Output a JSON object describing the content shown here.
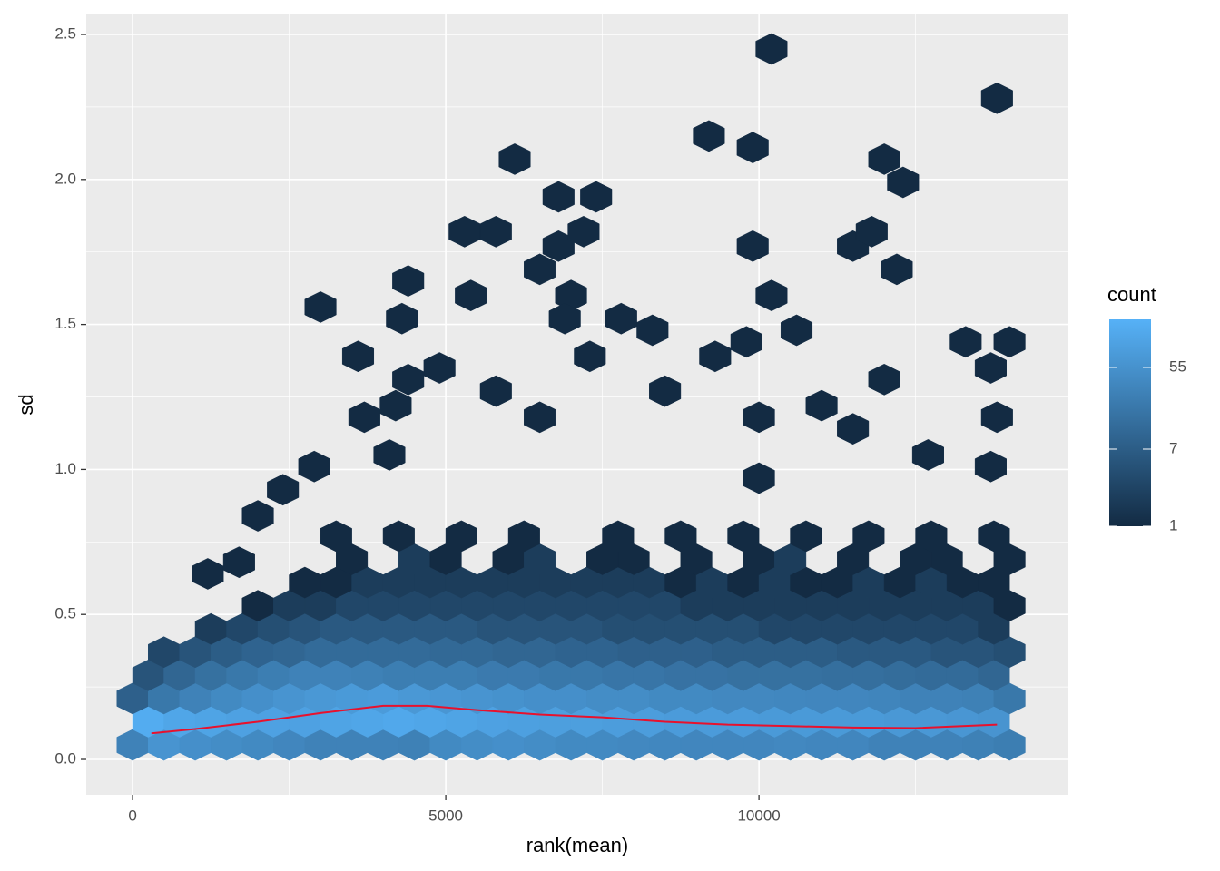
{
  "chart_data": {
    "type": "hexbin",
    "x_label": "rank(mean)",
    "y_label": "sd",
    "xlim": [
      -740,
      14940
    ],
    "ylim": [
      -0.122,
      2.572
    ],
    "xticks": [
      0,
      5000,
      10000
    ],
    "yticks": [
      {
        "value": 0,
        "label": "0.0"
      },
      0.5,
      {
        "value": 1,
        "label": "1.0"
      },
      1.5,
      {
        "value": 2,
        "label": "2.0"
      },
      2.5
    ],
    "x_minor_grid": [
      2500,
      7500,
      12500
    ],
    "y_minor_grid": [
      0.25,
      0.75,
      1.25,
      1.75,
      2.25
    ],
    "grid": true,
    "color_low": "#132B43",
    "color_high": "#56B1F7",
    "legend": {
      "title": "count",
      "ticks": [
        1,
        7,
        55
      ],
      "lim": [
        1,
        185
      ],
      "position": "right"
    },
    "hexes": [
      [
        0,
        0.05,
        30
      ],
      [
        500,
        0.05,
        60
      ],
      [
        1000,
        0.05,
        50
      ],
      [
        1500,
        0.05,
        45
      ],
      [
        2000,
        0.05,
        40
      ],
      [
        2500,
        0.05,
        35
      ],
      [
        3000,
        0.05,
        30
      ],
      [
        3500,
        0.05,
        30
      ],
      [
        4000,
        0.05,
        30
      ],
      [
        4500,
        0.05,
        28
      ],
      [
        5000,
        0.05,
        40
      ],
      [
        5500,
        0.05,
        45
      ],
      [
        6000,
        0.05,
        50
      ],
      [
        6500,
        0.05,
        45
      ],
      [
        7000,
        0.05,
        40
      ],
      [
        7500,
        0.05,
        40
      ],
      [
        8000,
        0.05,
        38
      ],
      [
        8500,
        0.05,
        36
      ],
      [
        9000,
        0.05,
        35
      ],
      [
        9500,
        0.05,
        35
      ],
      [
        10000,
        0.05,
        35
      ],
      [
        10500,
        0.05,
        38
      ],
      [
        11000,
        0.05,
        35
      ],
      [
        11500,
        0.05,
        35
      ],
      [
        12000,
        0.05,
        30
      ],
      [
        12500,
        0.05,
        30
      ],
      [
        13000,
        0.05,
        30
      ],
      [
        13500,
        0.05,
        28
      ],
      [
        14000,
        0.05,
        25
      ],
      [
        250,
        0.13,
        150
      ],
      [
        750,
        0.13,
        120
      ],
      [
        1250,
        0.13,
        110
      ],
      [
        1750,
        0.13,
        100
      ],
      [
        2250,
        0.13,
        100
      ],
      [
        2750,
        0.13,
        100
      ],
      [
        3250,
        0.13,
        110
      ],
      [
        3750,
        0.13,
        120
      ],
      [
        4250,
        0.13,
        130
      ],
      [
        4750,
        0.13,
        120
      ],
      [
        5250,
        0.13,
        110
      ],
      [
        5750,
        0.13,
        100
      ],
      [
        6250,
        0.13,
        95
      ],
      [
        6750,
        0.13,
        90
      ],
      [
        7250,
        0.13,
        90
      ],
      [
        7750,
        0.13,
        85
      ],
      [
        8250,
        0.13,
        85
      ],
      [
        8750,
        0.13,
        80
      ],
      [
        9250,
        0.13,
        80
      ],
      [
        9750,
        0.13,
        80
      ],
      [
        10250,
        0.13,
        75
      ],
      [
        10750,
        0.13,
        75
      ],
      [
        11250,
        0.13,
        75
      ],
      [
        11750,
        0.13,
        75
      ],
      [
        12250,
        0.13,
        70
      ],
      [
        12750,
        0.13,
        70
      ],
      [
        13250,
        0.13,
        65
      ],
      [
        13750,
        0.13,
        60
      ],
      [
        0,
        0.21,
        8
      ],
      [
        500,
        0.21,
        20
      ],
      [
        1000,
        0.21,
        30
      ],
      [
        1500,
        0.21,
        40
      ],
      [
        2000,
        0.21,
        50
      ],
      [
        2500,
        0.21,
        60
      ],
      [
        3000,
        0.21,
        70
      ],
      [
        3500,
        0.21,
        75
      ],
      [
        4000,
        0.21,
        80
      ],
      [
        4500,
        0.21,
        70
      ],
      [
        5000,
        0.21,
        65
      ],
      [
        5500,
        0.21,
        60
      ],
      [
        6000,
        0.21,
        55
      ],
      [
        6500,
        0.21,
        50
      ],
      [
        7000,
        0.21,
        50
      ],
      [
        7500,
        0.21,
        45
      ],
      [
        8000,
        0.21,
        45
      ],
      [
        8500,
        0.21,
        40
      ],
      [
        9000,
        0.21,
        40
      ],
      [
        9500,
        0.21,
        38
      ],
      [
        10000,
        0.21,
        38
      ],
      [
        10500,
        0.21,
        36
      ],
      [
        11000,
        0.21,
        35
      ],
      [
        11500,
        0.21,
        35
      ],
      [
        12000,
        0.21,
        33
      ],
      [
        12500,
        0.21,
        30
      ],
      [
        13000,
        0.21,
        30
      ],
      [
        13500,
        0.21,
        28
      ],
      [
        14000,
        0.21,
        20
      ],
      [
        250,
        0.29,
        5
      ],
      [
        750,
        0.29,
        10
      ],
      [
        1250,
        0.29,
        15
      ],
      [
        1750,
        0.29,
        20
      ],
      [
        2250,
        0.29,
        25
      ],
      [
        2750,
        0.29,
        30
      ],
      [
        3250,
        0.29,
        30
      ],
      [
        3750,
        0.29,
        28
      ],
      [
        4250,
        0.29,
        25
      ],
      [
        4750,
        0.29,
        25
      ],
      [
        5250,
        0.29,
        25
      ],
      [
        5750,
        0.29,
        22
      ],
      [
        6250,
        0.29,
        22
      ],
      [
        6750,
        0.29,
        20
      ],
      [
        7250,
        0.29,
        20
      ],
      [
        7750,
        0.29,
        18
      ],
      [
        8250,
        0.29,
        18
      ],
      [
        8750,
        0.29,
        16
      ],
      [
        9250,
        0.29,
        16
      ],
      [
        9750,
        0.29,
        15
      ],
      [
        10250,
        0.29,
        15
      ],
      [
        10750,
        0.29,
        15
      ],
      [
        11250,
        0.29,
        14
      ],
      [
        11750,
        0.29,
        14
      ],
      [
        12250,
        0.29,
        13
      ],
      [
        12750,
        0.29,
        12
      ],
      [
        13250,
        0.29,
        12
      ],
      [
        13750,
        0.29,
        10
      ],
      [
        500,
        0.37,
        3
      ],
      [
        1000,
        0.37,
        5
      ],
      [
        1500,
        0.37,
        7
      ],
      [
        2000,
        0.37,
        9
      ],
      [
        2500,
        0.37,
        10
      ],
      [
        3000,
        0.37,
        12
      ],
      [
        3500,
        0.37,
        12
      ],
      [
        4000,
        0.37,
        12
      ],
      [
        4500,
        0.37,
        12
      ],
      [
        5000,
        0.37,
        11
      ],
      [
        5500,
        0.37,
        11
      ],
      [
        6000,
        0.37,
        10
      ],
      [
        6500,
        0.37,
        10
      ],
      [
        7000,
        0.37,
        9
      ],
      [
        7500,
        0.37,
        9
      ],
      [
        8000,
        0.37,
        8
      ],
      [
        8500,
        0.37,
        8
      ],
      [
        9000,
        0.37,
        8
      ],
      [
        9500,
        0.37,
        7
      ],
      [
        10000,
        0.37,
        7
      ],
      [
        10500,
        0.37,
        7
      ],
      [
        11000,
        0.37,
        7
      ],
      [
        11500,
        0.37,
        6
      ],
      [
        12000,
        0.37,
        6
      ],
      [
        12500,
        0.37,
        6
      ],
      [
        13000,
        0.37,
        5
      ],
      [
        13500,
        0.37,
        5
      ],
      [
        14000,
        0.37,
        4
      ],
      [
        1250,
        0.45,
        2
      ],
      [
        1750,
        0.45,
        3
      ],
      [
        2250,
        0.45,
        4
      ],
      [
        2750,
        0.45,
        5
      ],
      [
        3250,
        0.45,
        6
      ],
      [
        3750,
        0.45,
        6
      ],
      [
        4250,
        0.45,
        6
      ],
      [
        4750,
        0.45,
        6
      ],
      [
        5250,
        0.45,
        6
      ],
      [
        5750,
        0.45,
        5
      ],
      [
        6250,
        0.45,
        5
      ],
      [
        6750,
        0.45,
        5
      ],
      [
        7250,
        0.45,
        5
      ],
      [
        7750,
        0.45,
        4
      ],
      [
        8250,
        0.45,
        4
      ],
      [
        8750,
        0.45,
        4
      ],
      [
        9250,
        0.45,
        4
      ],
      [
        9750,
        0.45,
        4
      ],
      [
        10250,
        0.45,
        3
      ],
      [
        10750,
        0.45,
        3
      ],
      [
        11250,
        0.45,
        3
      ],
      [
        11750,
        0.45,
        3
      ],
      [
        12250,
        0.45,
        3
      ],
      [
        12750,
        0.45,
        3
      ],
      [
        13250,
        0.45,
        3
      ],
      [
        13750,
        0.45,
        2
      ],
      [
        2000,
        0.53,
        1
      ],
      [
        2500,
        0.53,
        2
      ],
      [
        3000,
        0.53,
        2
      ],
      [
        3500,
        0.53,
        3
      ],
      [
        4000,
        0.53,
        3
      ],
      [
        4500,
        0.53,
        3
      ],
      [
        5000,
        0.53,
        3
      ],
      [
        5500,
        0.53,
        3
      ],
      [
        6000,
        0.53,
        3
      ],
      [
        6500,
        0.53,
        3
      ],
      [
        7000,
        0.53,
        3
      ],
      [
        7500,
        0.53,
        3
      ],
      [
        8000,
        0.53,
        3
      ],
      [
        8500,
        0.53,
        3
      ],
      [
        9000,
        0.53,
        2
      ],
      [
        9500,
        0.53,
        2
      ],
      [
        10000,
        0.53,
        2
      ],
      [
        10500,
        0.53,
        2
      ],
      [
        11000,
        0.53,
        2
      ],
      [
        11500,
        0.53,
        2
      ],
      [
        12000,
        0.53,
        2
      ],
      [
        12500,
        0.53,
        2
      ],
      [
        13000,
        0.53,
        2
      ],
      [
        13500,
        0.53,
        2
      ],
      [
        14000,
        0.53,
        1
      ],
      [
        2750,
        0.61,
        1
      ],
      [
        3250,
        0.61,
        1
      ],
      [
        3750,
        0.61,
        2
      ],
      [
        4250,
        0.61,
        2
      ],
      [
        4750,
        0.61,
        2
      ],
      [
        5250,
        0.61,
        2
      ],
      [
        5750,
        0.61,
        2
      ],
      [
        6250,
        0.61,
        2
      ],
      [
        6750,
        0.61,
        2
      ],
      [
        7250,
        0.61,
        2
      ],
      [
        7750,
        0.61,
        2
      ],
      [
        8250,
        0.61,
        2
      ],
      [
        8750,
        0.61,
        1
      ],
      [
        9250,
        0.61,
        2
      ],
      [
        9750,
        0.61,
        1
      ],
      [
        10250,
        0.61,
        2
      ],
      [
        10750,
        0.61,
        1
      ],
      [
        11250,
        0.61,
        1
      ],
      [
        11750,
        0.61,
        2
      ],
      [
        12250,
        0.61,
        1
      ],
      [
        12750,
        0.61,
        2
      ],
      [
        13250,
        0.61,
        1
      ],
      [
        13750,
        0.61,
        1
      ],
      [
        3500,
        0.69,
        1
      ],
      [
        4500,
        0.69,
        2
      ],
      [
        5000,
        0.69,
        1
      ],
      [
        6000,
        0.69,
        1
      ],
      [
        6500,
        0.69,
        2
      ],
      [
        7500,
        0.69,
        1
      ],
      [
        8000,
        0.69,
        1
      ],
      [
        9000,
        0.69,
        1
      ],
      [
        10000,
        0.69,
        1
      ],
      [
        10500,
        0.69,
        2
      ],
      [
        11500,
        0.69,
        1
      ],
      [
        12500,
        0.69,
        1
      ],
      [
        13000,
        0.69,
        1
      ],
      [
        14000,
        0.69,
        1
      ],
      [
        3250,
        0.77,
        1
      ],
      [
        4250,
        0.77,
        1
      ],
      [
        5250,
        0.77,
        1
      ],
      [
        6250,
        0.77,
        1
      ],
      [
        7750,
        0.77,
        1
      ],
      [
        8750,
        0.77,
        1
      ],
      [
        9750,
        0.77,
        1
      ],
      [
        10750,
        0.77,
        1
      ],
      [
        11750,
        0.77,
        1
      ],
      [
        12750,
        0.77,
        1
      ],
      [
        13750,
        0.77,
        1
      ],
      [
        3000,
        1.56,
        1
      ],
      [
        3600,
        1.39,
        1
      ],
      [
        4400,
        1.65,
        1
      ],
      [
        4300,
        1.52,
        1
      ],
      [
        4400,
        1.31,
        1
      ],
      [
        4900,
        1.35,
        1
      ],
      [
        5300,
        1.82,
        1
      ],
      [
        5800,
        1.82,
        1
      ],
      [
        5400,
        1.6,
        1
      ],
      [
        6100,
        2.07,
        1
      ],
      [
        6800,
        1.94,
        1
      ],
      [
        7400,
        1.94,
        1
      ],
      [
        6800,
        1.77,
        1
      ],
      [
        7200,
        1.82,
        1
      ],
      [
        6500,
        1.69,
        1
      ],
      [
        7000,
        1.6,
        1
      ],
      [
        6900,
        1.52,
        1
      ],
      [
        7300,
        1.39,
        1
      ],
      [
        7800,
        1.52,
        1
      ],
      [
        8300,
        1.48,
        1
      ],
      [
        9200,
        2.15,
        1
      ],
      [
        9300,
        1.39,
        1
      ],
      [
        9900,
        2.11,
        1
      ],
      [
        9900,
        1.77,
        1
      ],
      [
        10200,
        2.45,
        1
      ],
      [
        10200,
        1.6,
        1
      ],
      [
        10600,
        1.48,
        1
      ],
      [
        11500,
        1.77,
        1
      ],
      [
        11800,
        1.82,
        1
      ],
      [
        12000,
        2.07,
        1
      ],
      [
        12300,
        1.99,
        1
      ],
      [
        12200,
        1.69,
        1
      ],
      [
        12000,
        1.31,
        1
      ],
      [
        13800,
        2.28,
        1
      ],
      [
        13300,
        1.44,
        1
      ],
      [
        14000,
        1.44,
        1
      ],
      [
        13700,
        1.35,
        1
      ],
      [
        5800,
        1.27,
        1
      ],
      [
        2900,
        1.01,
        1
      ],
      [
        2400,
        0.93,
        1
      ],
      [
        6500,
        1.18,
        1
      ],
      [
        8500,
        1.27,
        1
      ],
      [
        10000,
        1.18,
        1
      ],
      [
        11000,
        1.22,
        1
      ],
      [
        11500,
        1.14,
        1
      ],
      [
        12700,
        1.05,
        1
      ],
      [
        13800,
        1.18,
        1
      ],
      [
        13700,
        1.01,
        1
      ],
      [
        1200,
        0.64,
        1
      ],
      [
        1700,
        0.68,
        1
      ],
      [
        2000,
        0.84,
        1
      ],
      [
        4200,
        1.22,
        1
      ],
      [
        3700,
        1.18,
        1
      ],
      [
        4100,
        1.05,
        1
      ],
      [
        10000,
        0.97,
        1
      ],
      [
        9800,
        1.44,
        1
      ]
    ],
    "smooth": {
      "color": "#E8112D",
      "x": [
        300,
        1000,
        2000,
        3000,
        4000,
        4700,
        5500,
        6500,
        7500,
        8500,
        9500,
        10500,
        11500,
        12500,
        13800
      ],
      "y": [
        0.09,
        0.105,
        0.13,
        0.16,
        0.185,
        0.185,
        0.17,
        0.155,
        0.145,
        0.13,
        0.12,
        0.115,
        0.11,
        0.108,
        0.12
      ]
    }
  }
}
